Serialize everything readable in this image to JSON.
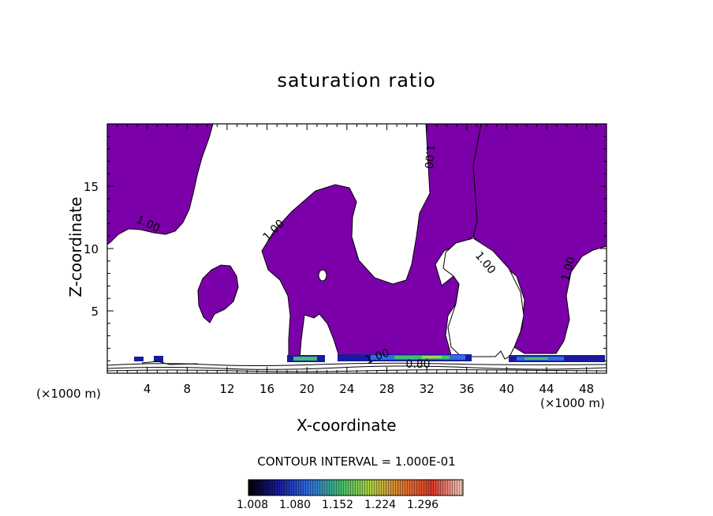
{
  "chart_data": {
    "type": "heatmap",
    "title": "saturation ratio",
    "xlabel": "X-coordinate",
    "ylabel": "Z-coordinate",
    "x_unit": "(×1000 m)",
    "xlim": [
      0,
      50
    ],
    "ylim": [
      0,
      20
    ],
    "x_ticks": [
      4,
      8,
      12,
      16,
      20,
      24,
      28,
      32,
      36,
      40,
      44,
      48
    ],
    "y_ticks": [
      5,
      10,
      15
    ],
    "contour_labels": [
      "1.00",
      "1.00",
      "1.00",
      "1.00",
      "1.00",
      "0.80",
      "1.00"
    ],
    "contour_interval_text": "CONTOUR INTERVAL = 1.000E-01",
    "colorbar": {
      "labels": [
        "1.008",
        "1.080",
        "1.152",
        "1.224",
        "1.296"
      ],
      "values": [
        1.008,
        1.08,
        1.152,
        1.224,
        1.296
      ],
      "colors": [
        "#000000",
        "#1a1aa0",
        "#2f6fe0",
        "#3fbf6f",
        "#b0d040",
        "#e07a30",
        "#d83a2a",
        "#f0d0c0"
      ]
    },
    "fill_color": "#7b00a9"
  }
}
